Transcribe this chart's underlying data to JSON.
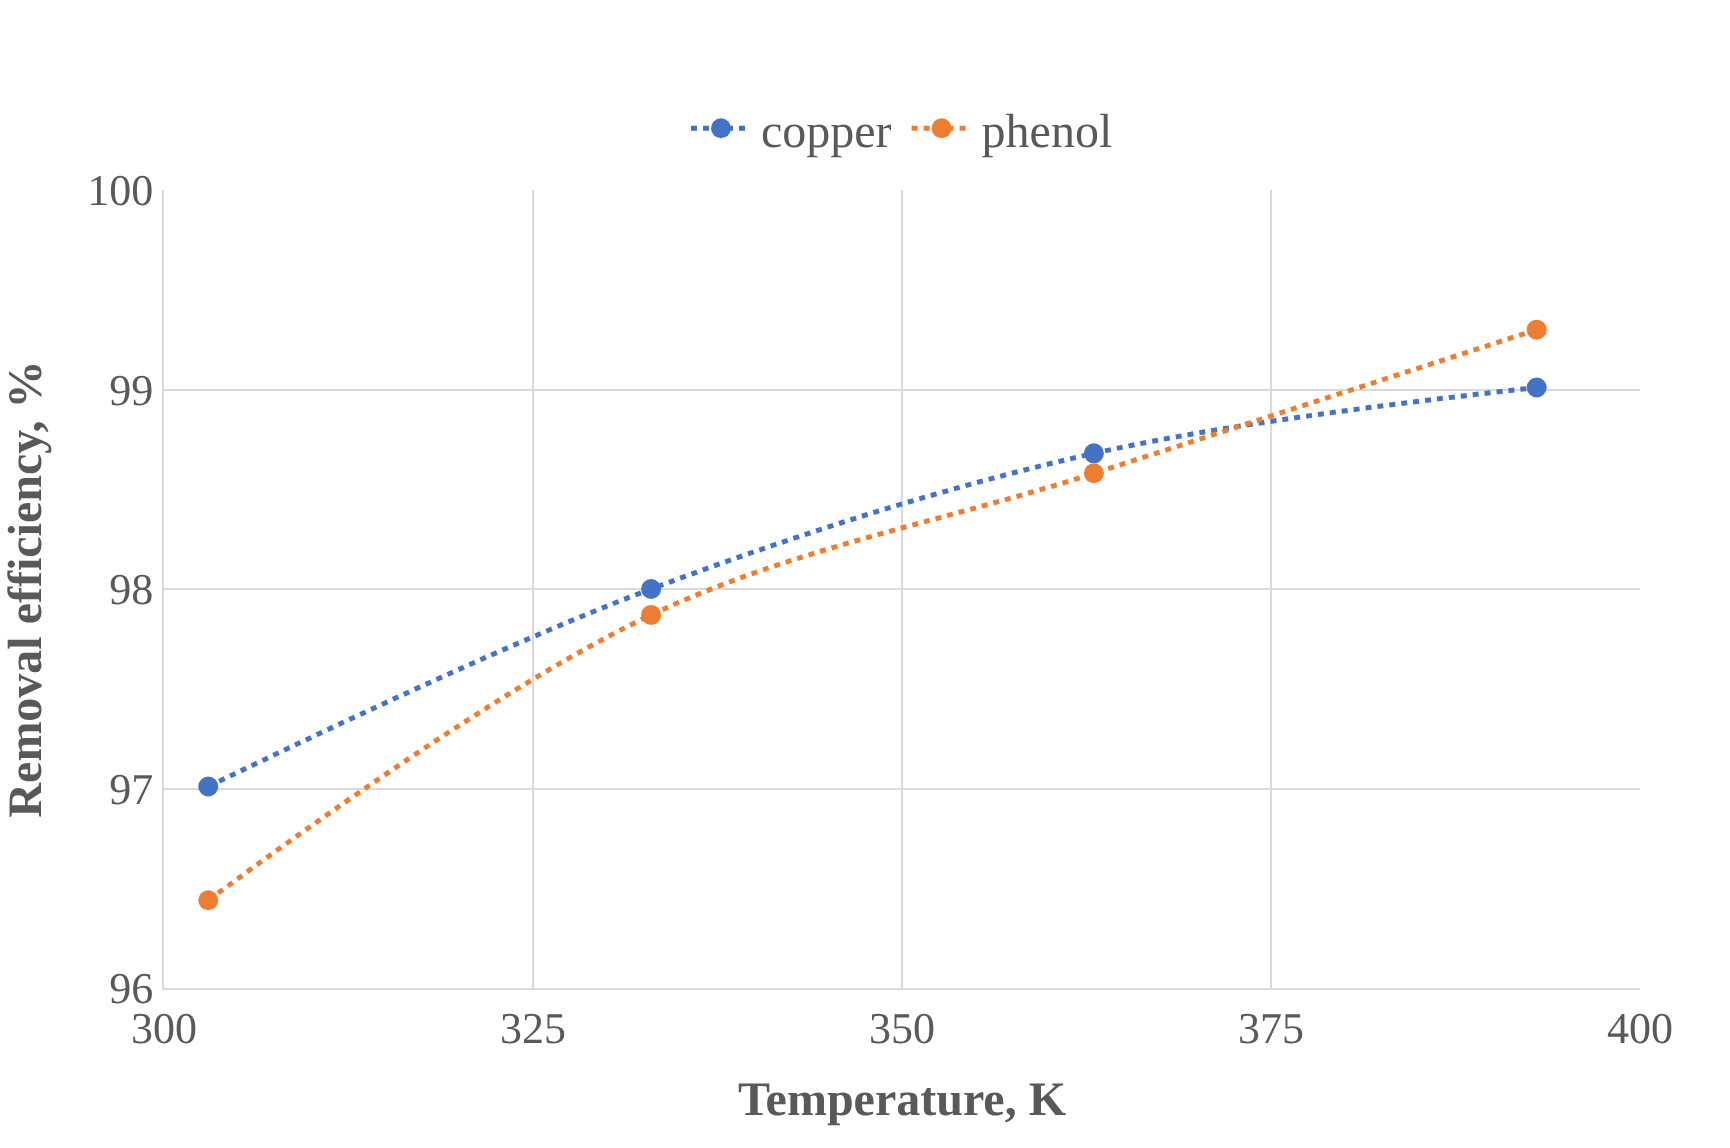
{
  "chart_data": {
    "type": "line",
    "xlabel": "Temperature, K",
    "ylabel": "Removal efficiency, %",
    "x": [
      303,
      333,
      363,
      393
    ],
    "series": [
      {
        "name": "copper",
        "color": "#4472c4",
        "values": [
          97.01,
          98.0,
          98.68,
          99.01
        ]
      },
      {
        "name": "phenol",
        "color": "#ed7d31",
        "values": [
          96.44,
          97.87,
          98.58,
          99.3
        ]
      }
    ],
    "xlim": [
      300,
      400
    ],
    "xticks": [
      300,
      325,
      350,
      375,
      400
    ],
    "ylim": [
      96,
      100
    ],
    "yticks": [
      96,
      97,
      98,
      99,
      100
    ],
    "grid": true,
    "legend": "top",
    "marker": "circle",
    "line_style": "dotted"
  }
}
